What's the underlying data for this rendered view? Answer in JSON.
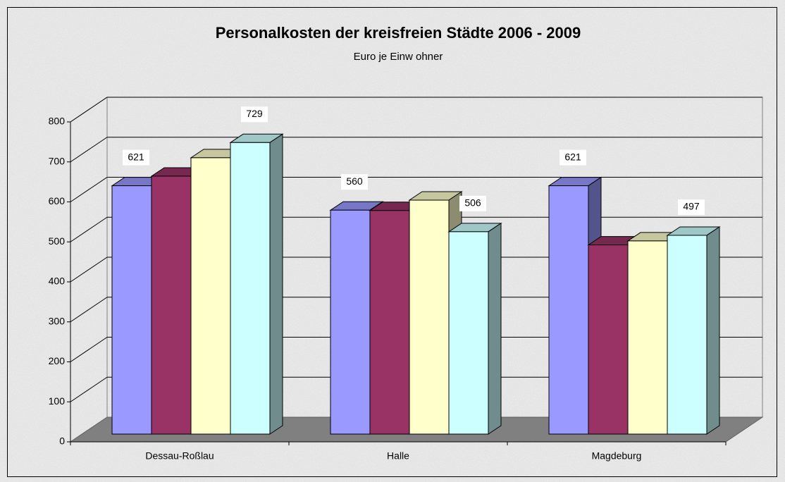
{
  "chart_data": {
    "type": "bar3d",
    "title": "Personalkosten der kreisfreien Städte 2006 - 2009",
    "subtitle": "Euro je Einw ohner",
    "categories": [
      "Dessau-Roßlau",
      "Halle",
      "Magdeburg"
    ],
    "series": [
      {
        "color": "#9999ff",
        "values": [
          621,
          560,
          621
        ],
        "show_labels": true
      },
      {
        "color": "#993366",
        "values": [
          645,
          559,
          473
        ],
        "show_labels": false
      },
      {
        "color": "#ffffcc",
        "values": [
          691,
          585,
          483
        ],
        "show_labels": false
      },
      {
        "color": "#ccffff",
        "values": [
          729,
          506,
          497
        ],
        "show_labels": true
      }
    ],
    "ylim": [
      0,
      800
    ],
    "yticks": [
      0,
      100,
      200,
      300,
      400,
      500,
      600,
      700,
      800
    ],
    "grid": true
  }
}
